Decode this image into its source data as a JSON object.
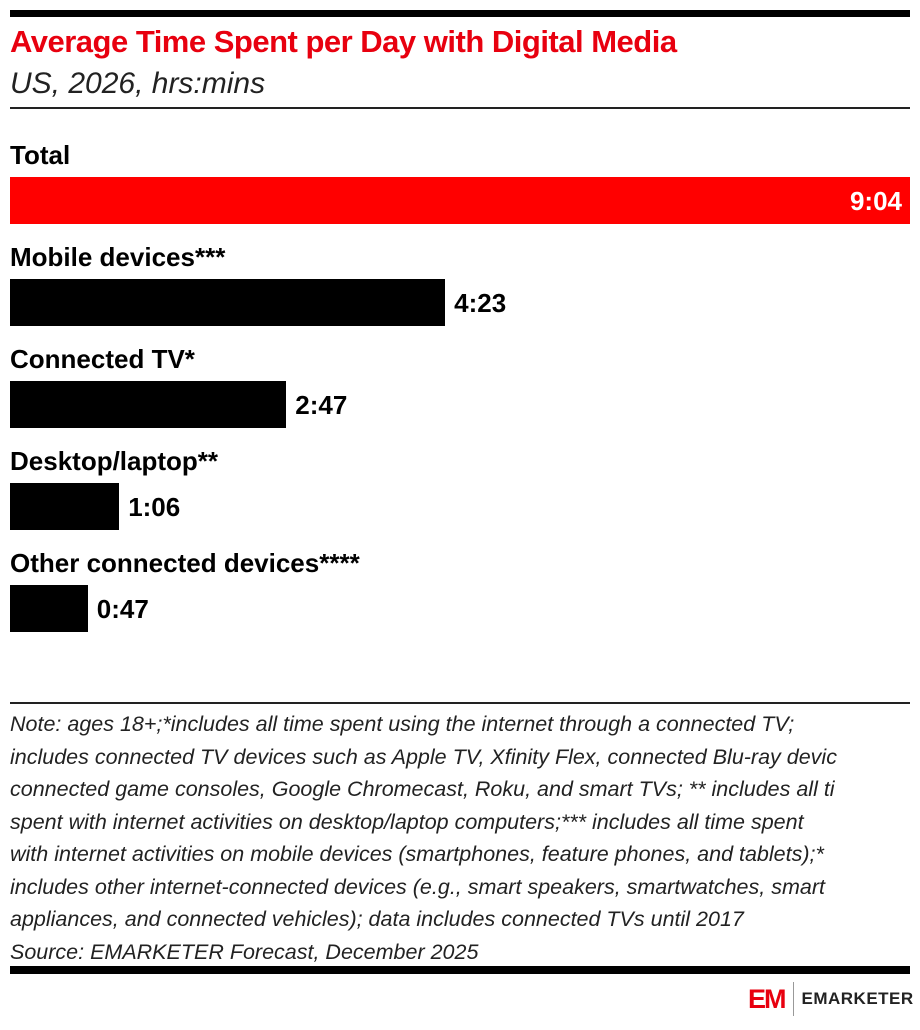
{
  "chart_data": {
    "type": "bar",
    "orientation": "horizontal",
    "title": "Average Time Spent per Day with Digital Media",
    "subtitle": "US, 2026, hrs:mins",
    "categories": [
      "Total",
      "Mobile devices***",
      "Connected TV*",
      "Desktop/laptop**",
      "Other connected devices****"
    ],
    "values_minutes": [
      544,
      263,
      167,
      66,
      47
    ],
    "labels": [
      "9:04",
      "4:23",
      "2:47",
      "1:06",
      "0:47"
    ],
    "colors": [
      "#ff0000",
      "#000000",
      "#000000",
      "#000000",
      "#000000"
    ],
    "xlim": [
      0,
      544
    ]
  },
  "note_lines": [
    "Note: ages 18+;*includes all time spent using the internet through a connected TV;",
    "includes connected TV devices such as Apple TV, Xfinity Flex, connected Blu-ray devic",
    "connected game consoles, Google Chromecast, Roku, and smart TVs; ** includes all ti",
    "spent with internet activities on desktop/laptop computers;*** includes all time spent",
    "with internet activities on mobile devices (smartphones, feature phones, and tablets);*",
    "includes other internet-connected devices (e.g., smart speakers, smartwatches, smart",
    "appliances, and connected vehicles); data includes connected TVs until 2017",
    "Source: EMARKETER Forecast, December 2025"
  ],
  "logo": {
    "mark": "EM",
    "name": "EMARKETER"
  }
}
